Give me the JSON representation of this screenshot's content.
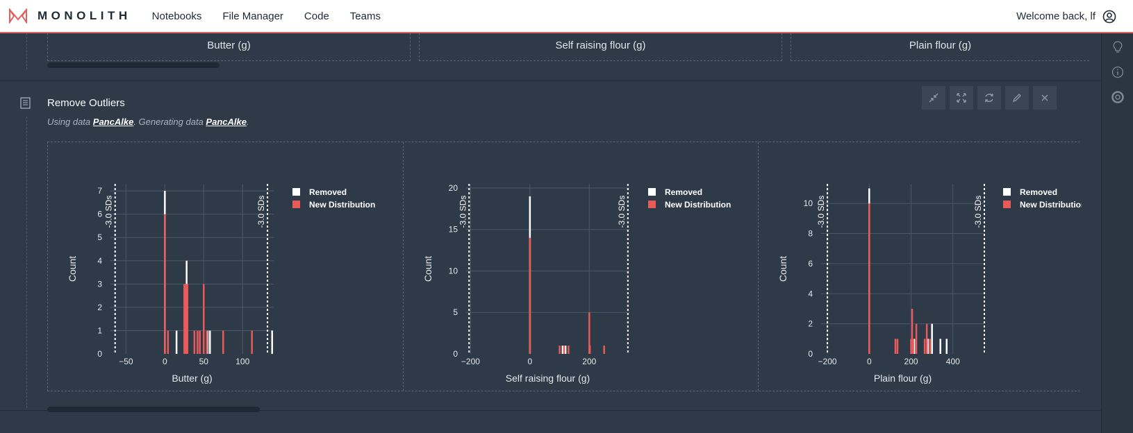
{
  "app": {
    "brand": "MONOLITH",
    "nav": [
      "Notebooks",
      "File Manager",
      "Code",
      "Teams"
    ],
    "welcome": "Welcome back, lf"
  },
  "top_cards": [
    "Butter (g)",
    "Self raising flour (g)",
    "Plain flour (g)"
  ],
  "block": {
    "title": "Remove Outliers",
    "using_prefix": "Using data",
    "input_data": "PancAlke",
    "generating_prefix": ". Generating data",
    "output_data": "PancAlke",
    "suffix": "."
  },
  "colors": {
    "removed": "#ffffff",
    "new_distribution": "#e85a5a",
    "accent": "#e0605e"
  },
  "icons": {
    "tools": [
      "collapse-icon",
      "expand-icon",
      "refresh-icon",
      "edit-icon",
      "close-icon"
    ],
    "rail": [
      "lightbulb-icon",
      "info-icon",
      "support-icon"
    ]
  },
  "chart_data": [
    {
      "type": "bar",
      "title": "",
      "xlabel": "Butter (g)",
      "ylabel": "Count",
      "xlim": [
        -70,
        140
      ],
      "ylim": [
        0,
        7.3
      ],
      "xticks": [
        -50,
        0,
        50,
        100
      ],
      "yticks": [
        0,
        1,
        2,
        3,
        4,
        5,
        6,
        7
      ],
      "grid": true,
      "legend": "right",
      "sd_label": "-3.0 SDs",
      "sd_lines": [
        -64,
        132
      ],
      "series": [
        {
          "name": "Removed",
          "x": [
            0,
            15,
            28,
            55,
            58,
            138
          ],
          "values": [
            7,
            1,
            4,
            1,
            1,
            1
          ]
        },
        {
          "name": "New Distribution",
          "x": [
            0,
            4,
            25,
            27,
            29,
            38,
            42,
            45,
            50,
            54,
            75,
            112
          ],
          "values": [
            6,
            1,
            3,
            3,
            3,
            1,
            1,
            1,
            3,
            1,
            1,
            1
          ]
        }
      ]
    },
    {
      "type": "bar",
      "title": "",
      "xlabel": "Self raising flour (g)",
      "ylabel": "Count",
      "xlim": [
        -215,
        335
      ],
      "ylim": [
        0,
        20.5
      ],
      "xticks": [
        -200,
        0,
        200
      ],
      "yticks": [
        0,
        5,
        10,
        15,
        20
      ],
      "grid": true,
      "legend": "right",
      "sd_label": "-3.0 SDs",
      "sd_lines": [
        -205,
        330
      ],
      "series": [
        {
          "name": "Removed",
          "x": [
            0,
            110,
            120
          ],
          "values": [
            19,
            1,
            1
          ]
        },
        {
          "name": "New Distribution",
          "x": [
            0,
            100,
            115,
            130,
            200,
            202,
            250
          ],
          "values": [
            14,
            1,
            1,
            1,
            5,
            1,
            1
          ]
        }
      ]
    },
    {
      "type": "bar",
      "title": "",
      "xlabel": "Plain flour (g)",
      "ylabel": "Count",
      "xlim": [
        -230,
        550
      ],
      "ylim": [
        0,
        11.3
      ],
      "xticks": [
        -200,
        0,
        200,
        400
      ],
      "yticks": [
        0,
        2,
        4,
        6,
        8,
        10
      ],
      "grid": true,
      "legend": "right",
      "sd_label": "-3.0 SDs",
      "sd_lines": [
        -200,
        550
      ],
      "series": [
        {
          "name": "Removed",
          "x": [
            0,
            215,
            280,
            300,
            340,
            370
          ],
          "values": [
            11,
            1,
            1,
            2,
            1,
            1
          ]
        },
        {
          "name": "New Distribution",
          "x": [
            0,
            125,
            135,
            200,
            205,
            210,
            225,
            265,
            275,
            290
          ],
          "values": [
            10,
            1,
            1,
            1,
            3,
            1,
            2,
            1,
            2,
            1
          ]
        }
      ]
    }
  ]
}
